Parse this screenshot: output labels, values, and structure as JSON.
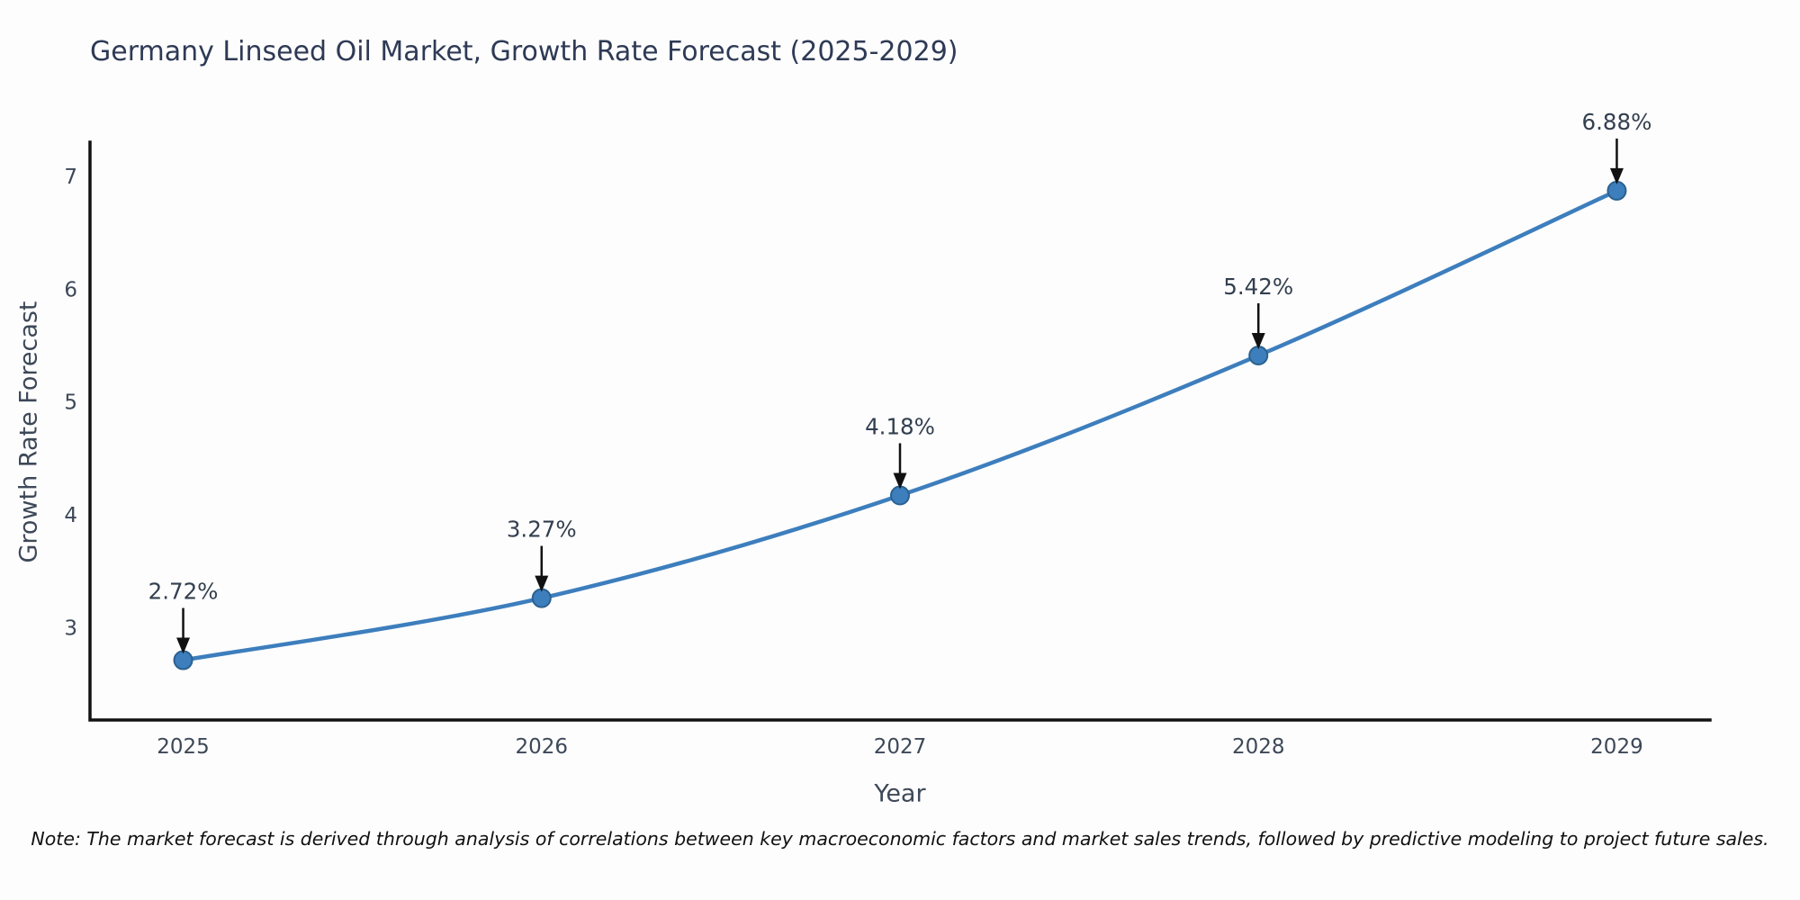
{
  "header": {
    "title": "Germany Linseed Oil Market, Growth Rate Forecast (2025-2029)"
  },
  "chart_data": {
    "type": "line",
    "line_shape": "spline",
    "categories": [
      "2025",
      "2026",
      "2027",
      "2028",
      "2029"
    ],
    "x": [
      2025,
      2026,
      2027,
      2028,
      2029
    ],
    "values": [
      2.72,
      3.27,
      4.18,
      5.42,
      6.88
    ],
    "point_labels": [
      "2.72%",
      "3.27%",
      "4.18%",
      "5.42%",
      "6.88%"
    ],
    "title": "Germany Linseed Oil Market, Growth Rate Forecast (2025-2029)",
    "xlabel": "Year",
    "ylabel": "Growth Rate Forecast",
    "yticks": [
      3,
      4,
      5,
      6,
      7
    ],
    "xlim": [
      2024.74,
      2029.26
    ],
    "ylim": [
      2.19,
      7.31
    ],
    "grid": false,
    "legend_position": "none",
    "colors": {
      "line": "#3d7ebd",
      "marker_fill": "#3d7ebd",
      "marker_edge": "#2b618f",
      "arrow": "#111111",
      "axis": "#111111",
      "tick_text": "#3d4858",
      "annotation_text": "#333f4f",
      "title_text": "#2e3a55"
    }
  },
  "footer": {
    "note": "Note: The market forecast is derived through analysis of correlations between key macroeconomic factors and market sales trends, followed by predictive modeling to project future sales."
  }
}
